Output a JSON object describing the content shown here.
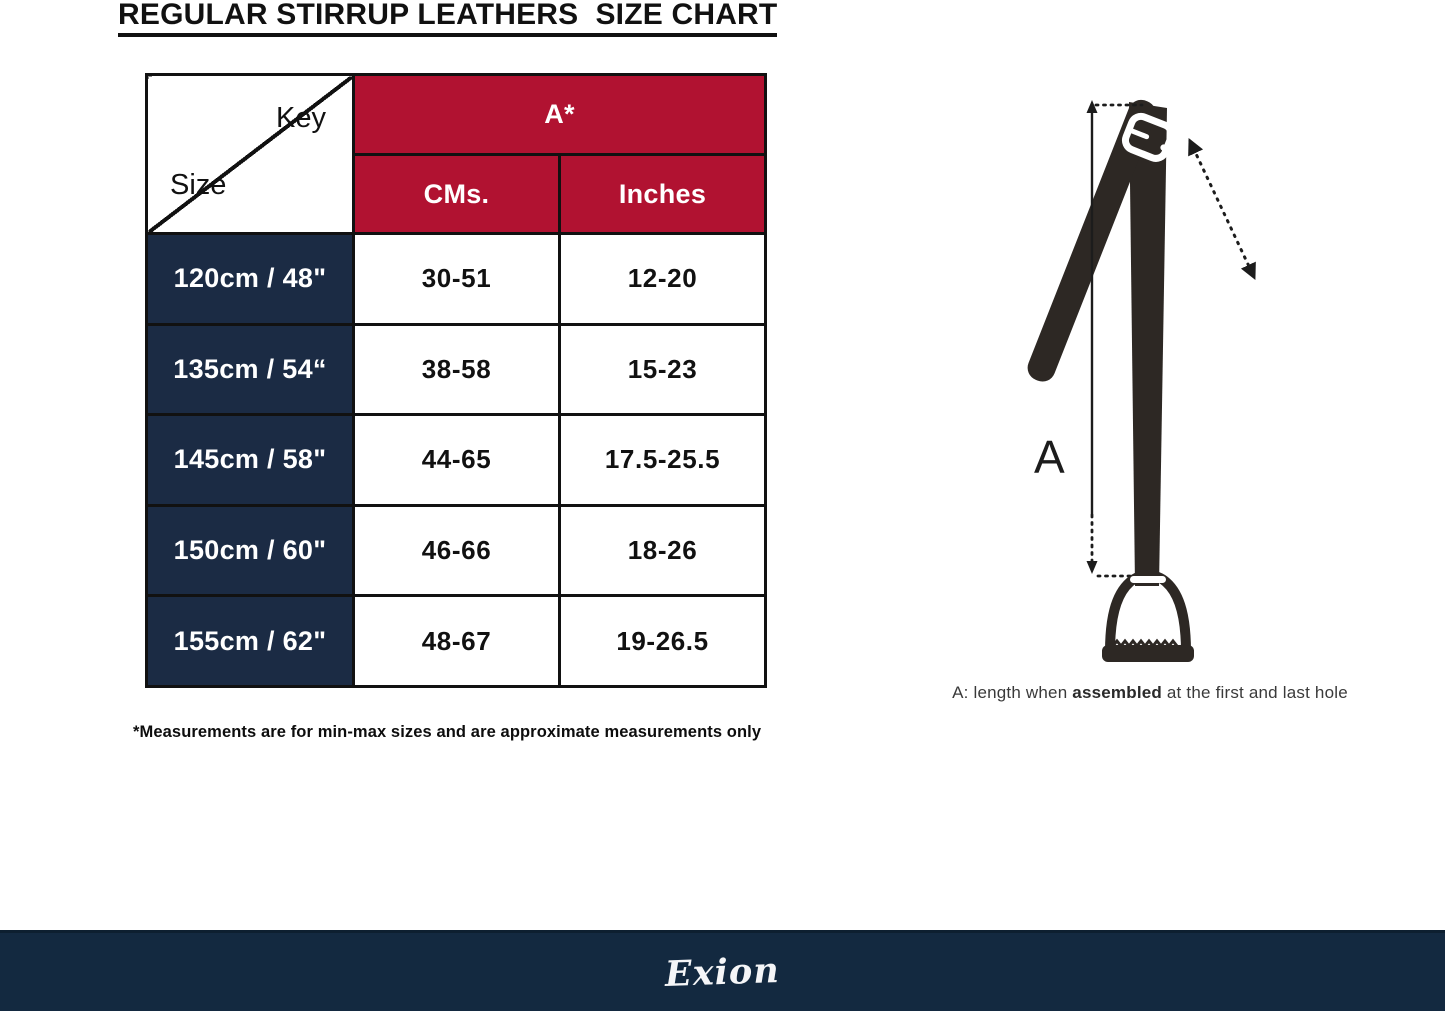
{
  "page": {
    "title": "REGULAR STIRRUP LEATHERS  SIZE CHART"
  },
  "table": {
    "corner": {
      "top": "Key",
      "bottom": "Size"
    },
    "group_header": "A*",
    "col_headers": [
      "CMs.",
      "Inches"
    ],
    "rows": [
      {
        "size": "120cm / 48\"",
        "cms": "30-51",
        "inches": "12-20"
      },
      {
        "size": "135cm / 54“",
        "cms": "38-58",
        "inches": "15-23"
      },
      {
        "size": "145cm / 58\"",
        "cms": "44-65",
        "inches": "17.5-25.5"
      },
      {
        "size": "150cm / 60\"",
        "cms": "46-66",
        "inches": "18-26"
      },
      {
        "size": "155cm / 62\"",
        "cms": "48-67",
        "inches": "19-26.5"
      }
    ]
  },
  "footnote": "*Measurements are for min-max sizes and are approximate measurements only",
  "diagram": {
    "dimension_label": "A",
    "caption": {
      "prefix": "A: length when ",
      "bold": "assembled",
      "suffix": " at the first and last hole"
    }
  },
  "footer": {
    "brand": "Exion"
  },
  "colors": {
    "red": "#B11231",
    "navy": "#1B2B44",
    "footer": "#132940",
    "strap": "#2D2824"
  },
  "chart_data": {
    "type": "table",
    "title": "REGULAR STIRRUP LEATHERS  SIZE CHART",
    "columns": [
      "Size",
      "A* (CMs.)",
      "A* (Inches)"
    ],
    "rows": [
      [
        "120cm / 48\"",
        "30-51",
        "12-20"
      ],
      [
        "135cm / 54“",
        "38-58",
        "15-23"
      ],
      [
        "145cm / 58\"",
        "44-65",
        "17.5-25.5"
      ],
      [
        "150cm / 60\"",
        "46-66",
        "18-26"
      ],
      [
        "155cm / 62\"",
        "48-67",
        "19-26.5"
      ]
    ],
    "notes": [
      "*Measurements are for min-max sizes and are approximate measurements only",
      "A: length when assembled at the first and last hole"
    ]
  }
}
